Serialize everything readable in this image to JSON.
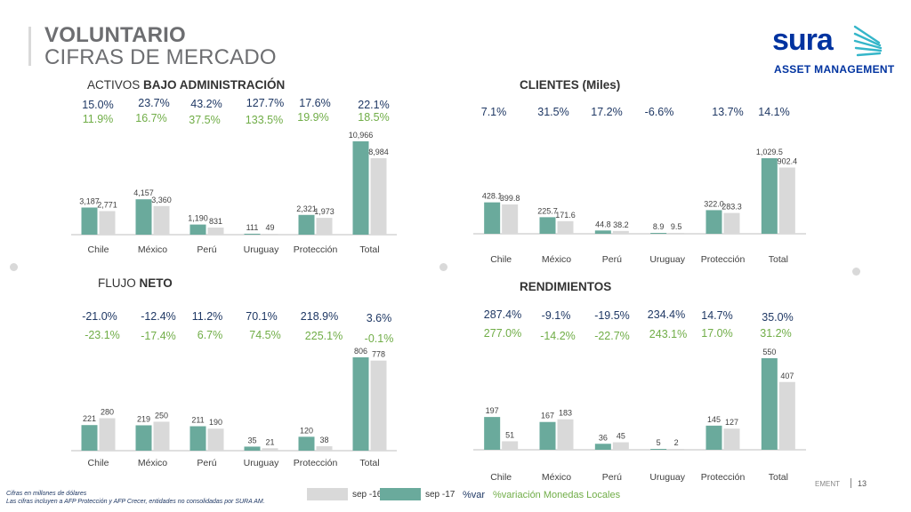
{
  "header": {
    "title_line1": "VOLUNTARIO",
    "title_line2": "CIFRAS DE MERCADO"
  },
  "logo": {
    "word": "sura",
    "subtitle": "ASSET MANAGEMENT",
    "color": "#0033a0"
  },
  "colors": {
    "series_sep17": "#6aaa9c",
    "series_sep16": "#d9d9d9",
    "pct_primary": "#1f3864",
    "pct_local": "#70ad47"
  },
  "panels": {
    "aum": {
      "title_plain": "ACTIVOS ",
      "title_bold": "BAJO ADMINISTRACIÓN",
      "pct_var": [
        "15.0%",
        "23.7%",
        "43.2%",
        "127.7%",
        "17.6%",
        "22.1%"
      ],
      "pct_local": [
        "11.9%",
        "16.7%",
        "37.5%",
        "133.5%",
        "19.9%",
        "18.5%"
      ]
    },
    "clients": {
      "title_plain": "",
      "title_bold": "CLIENTES (Miles)",
      "pct_var": [
        "7.1%",
        "31.5%",
        "17.2%",
        "-6.6%",
        "13.7%",
        "14.1%"
      ]
    },
    "flow": {
      "title_plain": "FLUJO ",
      "title_bold": "NETO",
      "pct_var": [
        "-21.0%",
        "-12.4%",
        "11.2%",
        "70.1%",
        "218.9%",
        "3.6%"
      ],
      "pct_local": [
        "-23.1%",
        "-17.4%",
        "6.7%",
        "74.5%",
        "225.1%",
        "-0.1%"
      ]
    },
    "returns": {
      "title_plain": "",
      "title_bold": "RENDIMIENTOS",
      "pct_var": [
        "287.4%",
        "-9.1%",
        "-19.5%",
        "234.4%",
        "14.7%",
        "35.0%"
      ],
      "pct_local": [
        "277.0%",
        "-14.2%",
        "-22.7%",
        "243.1%",
        "17.0%",
        "31.2%"
      ]
    }
  },
  "chart_data": [
    {
      "type": "bar",
      "title": "ACTIVOS BAJO ADMINISTRACIÓN",
      "categories": [
        "Chile",
        "México",
        "Perú",
        "Uruguay",
        "Protección",
        "Total"
      ],
      "series": [
        {
          "name": "sep -17",
          "values": [
            3187,
            4157,
            1190,
            111,
            2321,
            10966
          ],
          "labels": [
            "3,187",
            "4,157",
            "1,190",
            "111",
            "2,321",
            "10,966"
          ]
        },
        {
          "name": "sep -16",
          "values": [
            2771,
            3360,
            831,
            49,
            1973,
            8984
          ],
          "labels": [
            "2,771",
            "3,360",
            "831",
            "49",
            "1,973",
            "8,984"
          ]
        }
      ]
    },
    {
      "type": "bar",
      "title": "CLIENTES (Miles)",
      "categories": [
        "Chile",
        "México",
        "Perú",
        "Uruguay",
        "Protección",
        "Total"
      ],
      "series": [
        {
          "name": "sep -17",
          "values": [
            428.1,
            225.7,
            44.8,
            8.9,
            322.0,
            1029.5
          ],
          "labels": [
            "428.1",
            "225.7",
            "44.8",
            "8.9",
            "322.0",
            "1,029.5"
          ]
        },
        {
          "name": "sep -16",
          "values": [
            399.8,
            171.6,
            38.2,
            9.5,
            283.3,
            902.4
          ],
          "labels": [
            "399.8",
            "171.6",
            "38.2",
            "9.5",
            "283.3",
            "902.4"
          ]
        }
      ]
    },
    {
      "type": "bar",
      "title": "FLUJO NETO",
      "categories": [
        "Chile",
        "México",
        "Perú",
        "Uruguay",
        "Protección",
        "Total"
      ],
      "series": [
        {
          "name": "sep -17",
          "values": [
            221,
            219,
            211,
            35,
            120,
            806
          ],
          "labels": [
            "221",
            "219",
            "211",
            "35",
            "120",
            "806"
          ]
        },
        {
          "name": "sep -16",
          "values": [
            280,
            250,
            190,
            21,
            38,
            778
          ],
          "labels": [
            "280",
            "250",
            "190",
            "21",
            "38",
            "778"
          ]
        }
      ]
    },
    {
      "type": "bar",
      "title": "RENDIMIENTOS",
      "categories": [
        "Chile",
        "México",
        "Perú",
        "Uruguay",
        "Protección",
        "Total"
      ],
      "series": [
        {
          "name": "sep -17",
          "values": [
            197,
            167,
            36,
            5,
            145,
            550
          ],
          "labels": [
            "197",
            "167",
            "36",
            "5",
            "145",
            "550"
          ]
        },
        {
          "name": "sep -16",
          "values": [
            51,
            183,
            45,
            2,
            127,
            407
          ],
          "labels": [
            "51",
            "183",
            "45",
            "2",
            "127",
            "407"
          ]
        }
      ]
    }
  ],
  "footnotes": {
    "line1": "Cifras en millones de dólares",
    "line2": "Las cifras incluyen a  AFP Protección y AFP Crecer, entidades no consolidadas por SURA AM."
  },
  "legend": {
    "sep16": "sep -16",
    "sep17": "sep -17",
    "var": "%var",
    "var_local": "%variación Monedas Locales"
  },
  "page": {
    "footer_text": "EMENT",
    "number": "13"
  }
}
